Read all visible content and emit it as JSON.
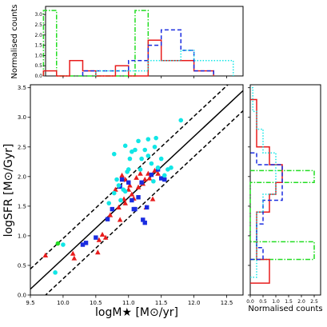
{
  "chart_data": [
    {
      "type": "scatter",
      "xlabel": "logM★ [M⊙/yr]",
      "ylabel": "logSFR [M⊙/Gyr]",
      "xlim": [
        9.5,
        12.75
      ],
      "ylim": [
        0.0,
        3.55
      ],
      "xticks": [
        "9.5",
        "10.0",
        "10.5",
        "11.0",
        "11.5",
        "12.0",
        "12.5"
      ],
      "yticks": [
        "0.0",
        "0.5",
        "1.0",
        "1.5",
        "2.0",
        "2.5",
        "3.0",
        "3.5"
      ],
      "grid": false,
      "colors": {
        "red": "#e81c1c",
        "blue": "#1a2ce0",
        "cyan": "#11e6e6",
        "green": "#22dd22",
        "line": "#000000"
      },
      "lines": {
        "fit": {
          "x": [
            9.5,
            12.75
          ],
          "y": [
            0.1,
            3.45
          ],
          "style": "solid"
        },
        "upper": {
          "x": [
            9.5,
            12.75
          ],
          "y": [
            0.44,
            3.79
          ],
          "style": "dashed"
        },
        "lower": {
          "x": [
            9.5,
            12.75
          ],
          "y": [
            -0.24,
            3.11
          ],
          "style": "dashed"
        }
      },
      "series": [
        {
          "marker": "triangle",
          "color": "red",
          "points": [
            [
              9.73,
              0.67
            ],
            [
              10.15,
              0.7
            ],
            [
              10.17,
              0.62
            ],
            [
              10.53,
              0.72
            ],
            [
              10.55,
              0.93
            ],
            [
              10.6,
              1.02
            ],
            [
              10.72,
              1.35
            ],
            [
              10.8,
              1.78
            ],
            [
              10.87,
              1.27
            ],
            [
              10.93,
              1.62
            ],
            [
              10.95,
              1.95
            ],
            [
              11.0,
              1.78
            ],
            [
              11.02,
              1.85
            ],
            [
              11.08,
              1.63
            ],
            [
              11.12,
              1.98
            ],
            [
              11.15,
              1.82
            ],
            [
              11.18,
              2.05
            ],
            [
              11.22,
              1.88
            ],
            [
              11.27,
              1.48
            ],
            [
              11.3,
              2.05
            ],
            [
              11.32,
              1.97
            ],
            [
              11.37,
              1.62
            ],
            [
              11.4,
              2.1
            ],
            [
              11.45,
              2.05
            ],
            [
              10.85,
              1.48
            ],
            [
              10.9,
              2.02
            ],
            [
              11.05,
              1.7
            ],
            [
              11.25,
              1.95
            ],
            [
              10.65,
              0.97
            ],
            [
              10.95,
              1.55
            ]
          ]
        },
        {
          "marker": "square",
          "color": "blue",
          "points": [
            [
              10.3,
              0.85
            ],
            [
              10.35,
              0.88
            ],
            [
              10.5,
              0.97
            ],
            [
              10.68,
              1.28
            ],
            [
              10.75,
              1.45
            ],
            [
              10.87,
              1.83
            ],
            [
              10.9,
              1.95
            ],
            [
              11.0,
              1.9
            ],
            [
              11.05,
              1.6
            ],
            [
              11.1,
              1.45
            ],
            [
              11.15,
              1.65
            ],
            [
              11.2,
              1.9
            ],
            [
              11.22,
              1.27
            ],
            [
              11.25,
              1.22
            ],
            [
              11.28,
              1.48
            ],
            [
              11.35,
              2.03
            ],
            [
              11.45,
              2.12
            ],
            [
              11.5,
              1.97
            ],
            [
              11.55,
              1.95
            ],
            [
              11.08,
              1.45
            ]
          ]
        },
        {
          "marker": "circle",
          "color": "cyan",
          "points": [
            [
              9.88,
              0.38
            ],
            [
              10.0,
              0.85
            ],
            [
              10.7,
              1.55
            ],
            [
              10.78,
              1.72
            ],
            [
              10.82,
              1.95
            ],
            [
              10.85,
              1.85
            ],
            [
              10.88,
              1.6
            ],
            [
              10.92,
              1.78
            ],
            [
              10.98,
              2.08
            ],
            [
              11.02,
              2.3
            ],
            [
              11.05,
              2.42
            ],
            [
              11.1,
              2.45
            ],
            [
              11.15,
              2.6
            ],
            [
              11.2,
              2.3
            ],
            [
              11.25,
              2.45
            ],
            [
              11.3,
              2.63
            ],
            [
              11.35,
              2.22
            ],
            [
              11.4,
              2.5
            ],
            [
              11.42,
              2.65
            ],
            [
              11.45,
              2.15
            ],
            [
              11.5,
              2.3
            ],
            [
              11.55,
              2.02
            ],
            [
              11.6,
              2.12
            ],
            [
              11.65,
              2.15
            ],
            [
              11.8,
              2.95
            ],
            [
              10.95,
              2.52
            ],
            [
              11.0,
              2.12
            ],
            [
              10.78,
              2.38
            ],
            [
              11.18,
              2.12
            ],
            [
              11.3,
              2.35
            ],
            [
              11.38,
              1.92
            ],
            [
              10.95,
              1.75
            ]
          ]
        },
        {
          "marker": "circle",
          "color": "green",
          "points": [
            [
              9.92,
              0.87
            ]
          ]
        }
      ]
    },
    {
      "type": "bar",
      "histtype": "step",
      "orientation": "vertical",
      "ylabel": "Normalised counts",
      "ylim": [
        0,
        3.4
      ],
      "yticks": [
        "0.0",
        "0.5",
        "1.0",
        "1.5",
        "2.0",
        "2.5",
        "3.0"
      ],
      "series": [
        {
          "color": "green",
          "style": "dashdot",
          "bins": [
            9.7,
            9.9,
            11.1,
            11.3
          ],
          "values": [
            3.2,
            0,
            3.2
          ]
        },
        {
          "color": "red",
          "style": "solid",
          "bins": [
            9.7,
            9.9,
            10.1,
            10.3,
            10.5,
            10.8,
            11.0,
            11.3,
            11.5,
            11.8,
            12.0,
            12.3
          ],
          "values": [
            0.25,
            0,
            0.75,
            0.25,
            0,
            0.5,
            0,
            1.75,
            0.75,
            0.75,
            0.25
          ]
        },
        {
          "color": "blue",
          "style": "dashed",
          "bins": [
            10.3,
            10.5,
            10.8,
            11.0,
            11.3,
            11.5,
            11.8,
            12.0,
            12.3
          ],
          "values": [
            0.25,
            0.25,
            0.25,
            0.75,
            1.5,
            2.25,
            1.25,
            0.25
          ]
        },
        {
          "color": "cyan",
          "style": "dotted",
          "bins": [
            10.5,
            11.3,
            11.8,
            12.0,
            12.4,
            12.6
          ],
          "values": [
            0.25,
            0.75,
            1.25,
            0.75,
            0.75
          ]
        }
      ]
    },
    {
      "type": "bar",
      "histtype": "step",
      "orientation": "horizontal",
      "xlabel": "Normalised counts",
      "xlim": [
        0,
        2.75
      ],
      "xticks": [
        "0.0",
        "0.5",
        "1.0",
        "1.5",
        "2.0",
        "2.5"
      ],
      "series": [
        {
          "color": "green",
          "style": "dashdot",
          "bins": [
            0.6,
            0.9,
            1.9,
            2.1
          ],
          "values": [
            2.5,
            0,
            2.5
          ]
        },
        {
          "color": "red",
          "style": "solid",
          "bins": [
            0.2,
            0.6,
            0.8,
            1.0,
            1.4,
            1.7,
            1.9,
            2.2,
            2.5,
            3.3
          ],
          "values": [
            0.75,
            0.25,
            0.25,
            0.25,
            0.75,
            1.0,
            1.25,
            0.75,
            0.25
          ]
        },
        {
          "color": "blue",
          "style": "dashed",
          "bins": [
            0.6,
            0.8,
            1.0,
            1.2,
            1.6,
            1.9,
            2.2,
            2.4
          ],
          "values": [
            0.5,
            0.25,
            0.25,
            0.5,
            1.25,
            1.25,
            0.25
          ]
        },
        {
          "color": "cyan",
          "style": "dotted",
          "bins": [
            0.3,
            0.5,
            1.4,
            1.7,
            2.0,
            2.4,
            2.8,
            3.1,
            3.5
          ],
          "values": [
            0.25,
            0.25,
            0.5,
            1.0,
            1.0,
            0.5,
            0.25,
            0.1
          ]
        }
      ]
    }
  ]
}
